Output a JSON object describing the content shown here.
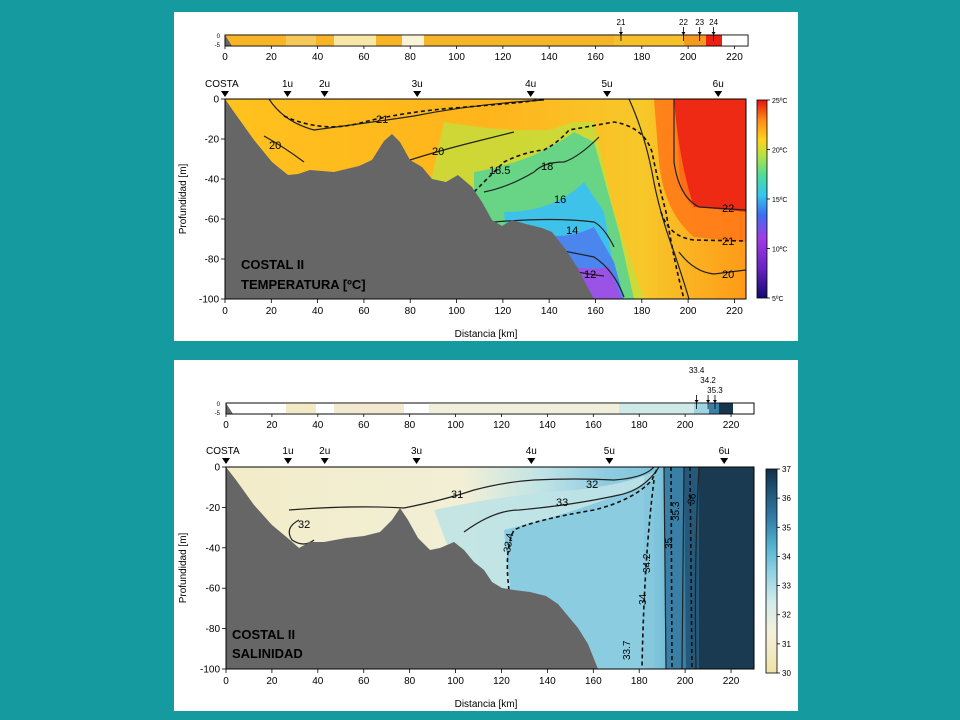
{
  "colors": {
    "background": "#149a9f",
    "land": "#666666",
    "temperature_scale": [
      "#120a6e",
      "#5a1fb0",
      "#9b3de0",
      "#3c7ef2",
      "#39c4f0",
      "#49d8a0",
      "#a9e04a",
      "#ffd21e",
      "#ff9d17",
      "#ff5a12",
      "#e81210"
    ],
    "salinity_scale": [
      "#efe6b8",
      "#f3f0dc",
      "#d6ecea",
      "#8fd0e2",
      "#58b8d2",
      "#3a8cb0",
      "#25607f",
      "#14354d"
    ]
  },
  "chart_data": [
    {
      "type": "heatmap",
      "variable": "temperature",
      "label_line1": "COSTAL II",
      "label_line2": "TEMPERATURA [ºC]",
      "xlabel": "Distancia [km]",
      "ylabel": "Profundidad [m]",
      "xlim": [
        0,
        225
      ],
      "ylim": [
        -100,
        0
      ],
      "xticks": [
        "0",
        "20",
        "40",
        "60",
        "80",
        "100",
        "120",
        "140",
        "160",
        "180",
        "200",
        "220"
      ],
      "yticks": [
        "0",
        "-20",
        "-40",
        "-60",
        "-80",
        "-100"
      ],
      "stations": [
        {
          "label": "COSTA",
          "x": 0
        },
        {
          "label": "1u",
          "x": 27
        },
        {
          "label": "2u",
          "x": 43
        },
        {
          "label": "3u",
          "x": 83
        },
        {
          "label": "4u",
          "x": 132
        },
        {
          "label": "5u",
          "x": 165
        },
        {
          "label": "6u",
          "x": 213
        }
      ],
      "surface_strip": {
        "yticks": [
          "0",
          "-5"
        ],
        "markers": [
          {
            "label": "21",
            "x": 171
          },
          {
            "label": "22",
            "x": 198
          },
          {
            "label": "23",
            "x": 205
          },
          {
            "label": "24",
            "x": 211
          }
        ]
      },
      "colorbar": {
        "ticks": [
          "25ºC",
          "20ºC",
          "15ºC",
          "10ºC",
          "5ºC"
        ],
        "range": [
          5,
          25
        ]
      },
      "contour_labels": [
        "21",
        "20",
        "20",
        "18.5",
        "18",
        "16",
        "14",
        "12",
        "22",
        "21",
        "20"
      ]
    },
    {
      "type": "heatmap",
      "variable": "salinity",
      "label_line1": "COSTAL II",
      "label_line2": "SALINIDAD",
      "xlabel": "Distancia [km]",
      "ylabel": "Profundidad [m]",
      "xlim": [
        0,
        230
      ],
      "ylim": [
        -100,
        0
      ],
      "xticks": [
        "0",
        "20",
        "40",
        "60",
        "80",
        "100",
        "120",
        "140",
        "160",
        "180",
        "200",
        "220"
      ],
      "yticks": [
        "0",
        "-20",
        "-40",
        "-60",
        "-80",
        "-100"
      ],
      "stations": [
        {
          "label": "COSTA",
          "x": 0
        },
        {
          "label": "1u",
          "x": 27
        },
        {
          "label": "2u",
          "x": 43
        },
        {
          "label": "3u",
          "x": 83
        },
        {
          "label": "4u",
          "x": 133
        },
        {
          "label": "5u",
          "x": 167
        },
        {
          "label": "6u",
          "x": 217
        }
      ],
      "surface_strip": {
        "yticks": [
          "0",
          "-5"
        ],
        "markers": [
          {
            "label": "33.4",
            "x": 205
          },
          {
            "label": "34.2",
            "x": 210
          },
          {
            "label": "35.3",
            "x": 213
          }
        ]
      },
      "colorbar": {
        "ticks": [
          "37",
          "36",
          "35",
          "34",
          "33",
          "32",
          "31",
          "30"
        ],
        "range": [
          30,
          37
        ]
      },
      "contour_labels": [
        "31",
        "32",
        "33",
        "32",
        "33.4",
        "33.7",
        "34",
        "34.2",
        "35",
        "35.3",
        "36"
      ]
    }
  ]
}
